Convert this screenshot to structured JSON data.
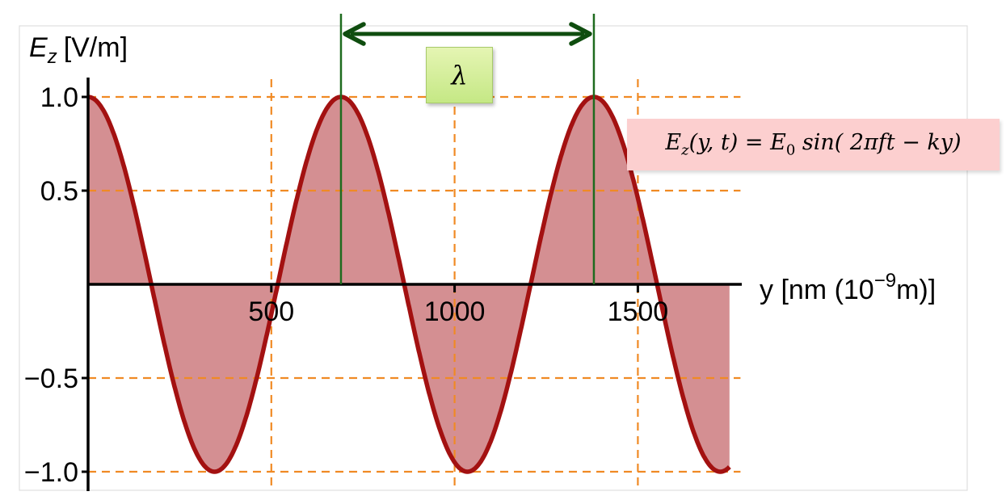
{
  "chart_data": {
    "type": "area",
    "title": "",
    "ylabel_main": "E",
    "ylabel_sub": "z",
    "ylabel_unit": "[V/m]",
    "xlabel_prefix": "y [nm (10",
    "xlabel_exp": "−9",
    "xlabel_suffix": "m)]",
    "xlim": [
      0,
      1750
    ],
    "ylim": [
      -1.0,
      1.0
    ],
    "x_ticks": [
      {
        "value": 500,
        "label": "500"
      },
      {
        "value": 1000,
        "label": "1000"
      },
      {
        "value": 1500,
        "label": "1500"
      }
    ],
    "y_ticks": [
      {
        "value": 1.0,
        "label": "1.0"
      },
      {
        "value": 0.5,
        "label": "0.5"
      },
      {
        "value": -0.5,
        "label": "−0.5"
      },
      {
        "value": -1.0,
        "label": "−1.0"
      }
    ],
    "grid": true,
    "series": [
      {
        "function": "cos",
        "amplitude": 1.0,
        "wavelength": 690,
        "x_start": 0,
        "x_end": 1750,
        "line_color": "#a31111",
        "fill_color": "#d48f92"
      }
    ],
    "wavelength_marker": {
      "x_start": 690,
      "x_end": 1380,
      "label": "λ",
      "color": "#1e6b1e",
      "arrow_color": "#0f4d0f"
    },
    "formula": "E_z(y,t) = E_0 sin( 2πft − ky)",
    "grid_color": "#f08a24"
  },
  "formula_box": {
    "text_main": "E",
    "text_sub": "z",
    "text_rest": "(y, t) = E",
    "text_sub2": "0",
    "text_tail": " sin( 2πft − ky)"
  }
}
